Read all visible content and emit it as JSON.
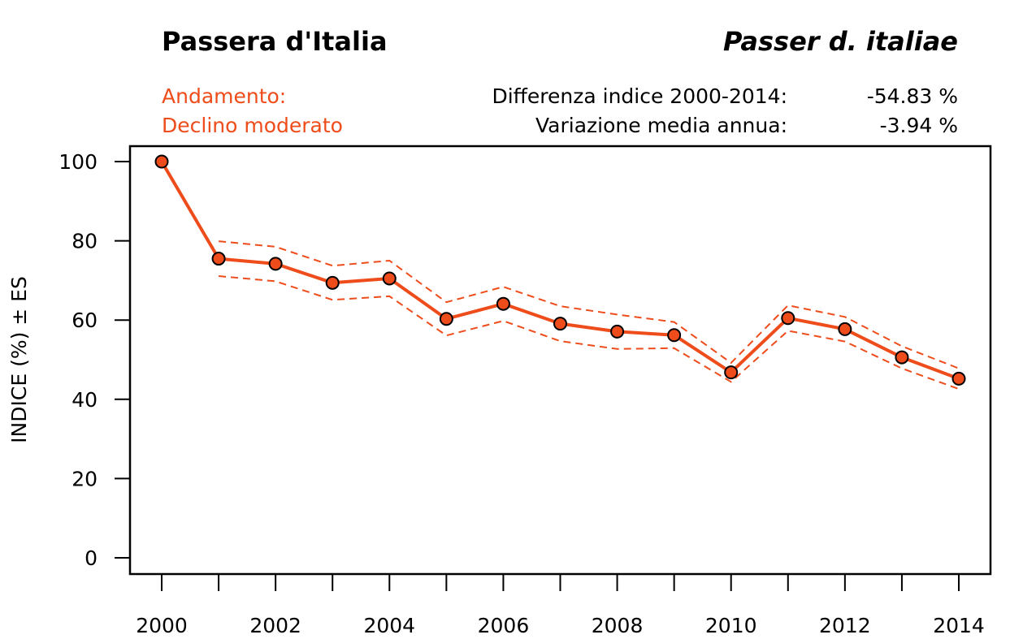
{
  "header": {
    "common_name": "Passera d'Italia",
    "scientific_name": "Passer d. italiae",
    "trend_label": "Andamento:",
    "trend_value": "Declino moderato",
    "stats": [
      {
        "label": "Differenza indice 2000-2014:",
        "value": "-54.83 %"
      },
      {
        "label": "Variazione media annua:",
        "value": "-3.94 %"
      }
    ]
  },
  "colors": {
    "accent": "#EE4C1B",
    "axis": "#000000"
  },
  "chart_data": {
    "type": "line",
    "title": "Passera d'Italia",
    "xlabel": "",
    "ylabel": "INDICE (%) ± ES",
    "x": [
      2000,
      2001,
      2002,
      2003,
      2004,
      2005,
      2006,
      2007,
      2008,
      2009,
      2010,
      2011,
      2012,
      2013,
      2014
    ],
    "ylim": [
      0,
      100
    ],
    "xlim": [
      2000,
      2014
    ],
    "yticks": [
      0,
      20,
      40,
      60,
      80,
      100
    ],
    "yticklabels": [
      "0",
      "20",
      "40",
      "60",
      "80",
      "100"
    ],
    "xticks": [
      2000,
      2001,
      2002,
      2003,
      2004,
      2005,
      2006,
      2007,
      2008,
      2009,
      2010,
      2011,
      2012,
      2013,
      2014
    ],
    "xticklabels": [
      "2000",
      "",
      "2002",
      "",
      "2004",
      "",
      "2006",
      "",
      "2008",
      "",
      "2010",
      "",
      "2012",
      "",
      "2014"
    ],
    "grid": false,
    "series": [
      {
        "name": "Indice",
        "style": "solid-with-markers",
        "values": [
          100,
          75.5,
          74.2,
          69.4,
          70.5,
          60.3,
          64.1,
          59.1,
          57.1,
          56.2,
          46.8,
          60.5,
          57.7,
          50.6,
          45.2
        ]
      },
      {
        "name": "Indice + ES",
        "style": "dashed",
        "values": [
          null,
          79.9,
          78.5,
          73.7,
          75.0,
          64.5,
          68.4,
          63.5,
          61.4,
          59.5,
          49.2,
          63.7,
          60.8,
          53.4,
          47.8
        ]
      },
      {
        "name": "Indice - ES",
        "style": "dashed",
        "values": [
          null,
          71.1,
          69.8,
          65.1,
          66.0,
          56.1,
          59.8,
          54.7,
          52.7,
          52.9,
          44.4,
          57.3,
          54.6,
          47.8,
          42.6
        ]
      }
    ]
  }
}
